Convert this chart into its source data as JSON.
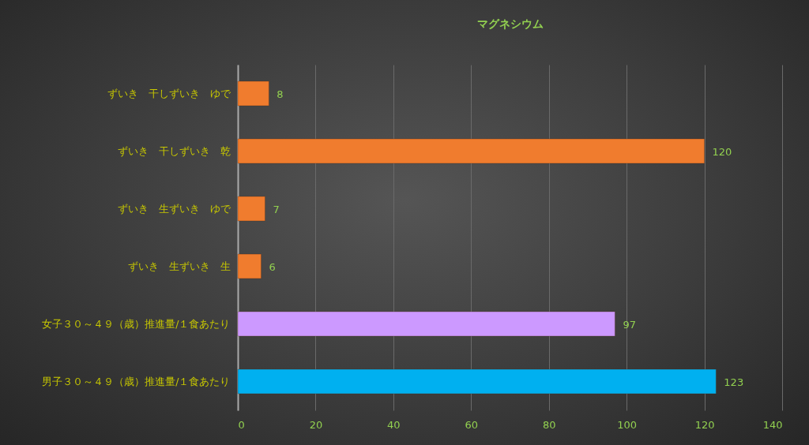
{
  "chart_data": {
    "type": "bar",
    "orientation": "horizontal",
    "title": "マグネシウム",
    "categories": [
      "ずいき　干しずいき　ゆで",
      "ずいき　干しずいき　乾",
      "ずいき　生ずいき　ゆで",
      "ずいき　生ずいき　生",
      "女子３０～４９（歳）推進量/１食あたり",
      "男子３０～４９（歳）推進量/１食あたり"
    ],
    "values": [
      8,
      120,
      7,
      6,
      97,
      123
    ],
    "colors": [
      "#f07c2e",
      "#f07c2e",
      "#f07c2e",
      "#f07c2e",
      "#cc99ff",
      "#00b0f0"
    ],
    "xlim": [
      0,
      140
    ],
    "xticks": [
      0,
      20,
      40,
      60,
      80,
      100,
      120,
      140
    ],
    "grid": "x",
    "data_labels": true,
    "legend": false
  }
}
